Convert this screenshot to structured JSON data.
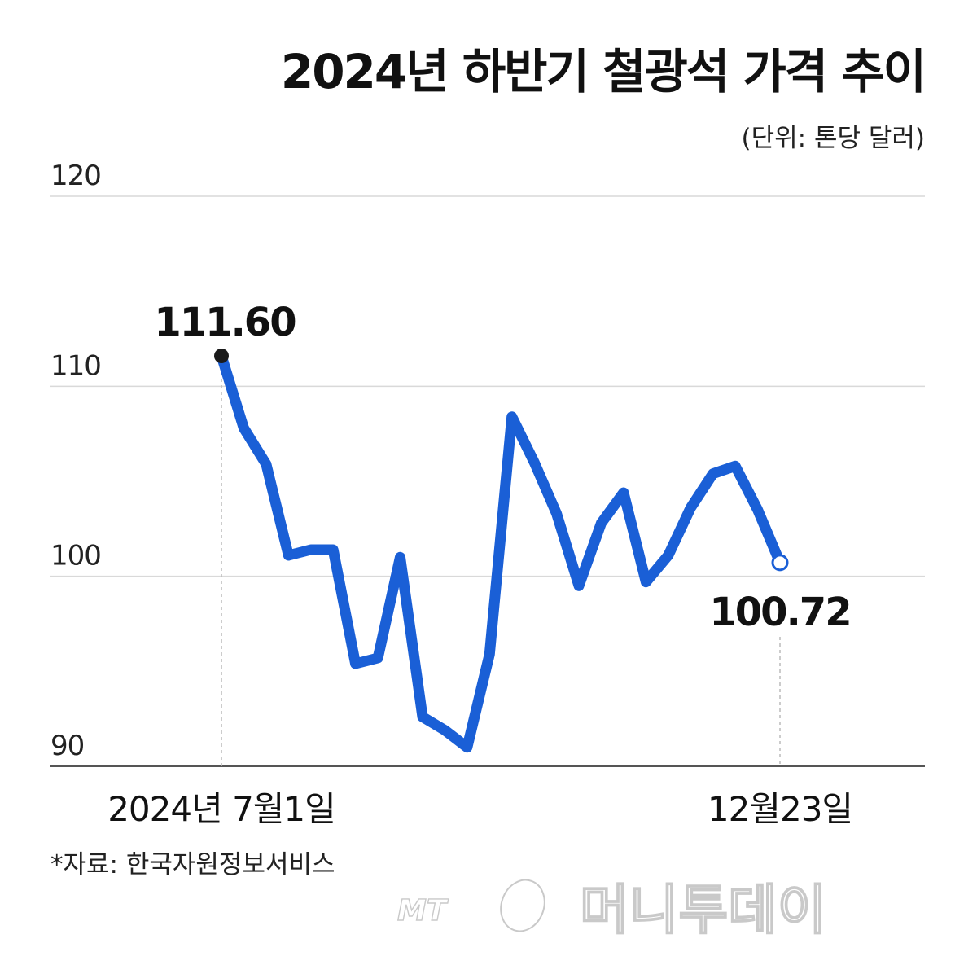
{
  "chart_data": {
    "type": "line",
    "title": "2024년 하반기 철광석 가격 추이",
    "unit_label": "(단위: 톤당 달러)",
    "ylim": [
      90,
      120
    ],
    "yticks": [
      "120",
      "110",
      "100",
      "90"
    ],
    "grid": true,
    "x_first_label": "2024년 7월1일",
    "x_last_label": "12월23일",
    "series": [
      {
        "color": "#1a5fd6",
        "values": [
          111.6,
          107.8,
          105.9,
          101.1,
          101.4,
          101.4,
          95.4,
          95.7,
          101.0,
          92.6,
          91.9,
          91.0,
          95.9,
          108.4,
          106.0,
          103.3,
          99.5,
          102.8,
          104.4,
          99.7,
          101.1,
          103.6,
          105.4,
          105.8,
          103.5,
          100.72
        ]
      }
    ],
    "first_label": "111.60",
    "last_label": "100.72",
    "line_color": "#1a5fd6",
    "source": "*자료: 한국자원정보서비스",
    "watermark": "MT 머니투데이"
  }
}
